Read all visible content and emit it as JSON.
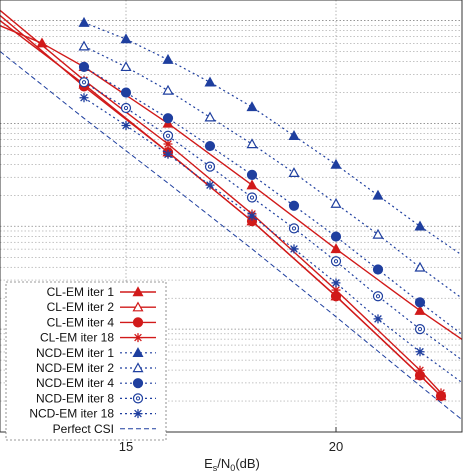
{
  "chart_data": {
    "type": "line",
    "xlabel": "E",
    "xlabel_sub": "s",
    "xlabel_mid": "/N",
    "xlabel_sub2": "0",
    "xlabel_tail": "(dB)",
    "xlim": [
      12.0,
      23.0
    ],
    "ylog": true,
    "ylim_decades": [
      0,
      4.2
    ],
    "x_ticks": [
      15,
      20
    ],
    "x_tick_labels": [
      "15",
      "20"
    ],
    "grid": "on",
    "legend_position": "bottom-left",
    "colors": {
      "cl": "#d11a1a",
      "ncd": "#1f3f9f",
      "cl_dark": "#8b1030",
      "perfect": "#1f3f9f"
    },
    "series": [
      {
        "name": "CL-EM iter   1",
        "style": "cl",
        "marker": "triangle-filled",
        "x": [
          12.0,
          13.0,
          14.0,
          16.0,
          18.0,
          20.0,
          22.0,
          23.0
        ],
        "y": [
          3.95,
          3.78,
          3.55,
          3.0,
          2.4,
          1.78,
          1.18,
          0.9
        ]
      },
      {
        "name": "CL-EM iter   2",
        "style": "cl",
        "marker": "triangle-open",
        "x": [
          12.0,
          14.0,
          16.0,
          18.0,
          20.0,
          22.0,
          22.5
        ],
        "y": [
          4.0,
          3.38,
          2.72,
          2.05,
          1.32,
          0.55,
          0.35
        ]
      },
      {
        "name": "CL-EM iter   4",
        "style": "cl",
        "marker": "circle-filled",
        "x": [
          12.0,
          14.0,
          16.0,
          18.0,
          20.0,
          22.0,
          22.5
        ],
        "y": [
          4.05,
          3.36,
          2.72,
          2.05,
          1.32,
          0.55,
          0.35
        ]
      },
      {
        "name": "CL-EM iter 18",
        "style": "cl",
        "marker": "star",
        "x": [
          12.0,
          14.0,
          16.0,
          18.0,
          20.0,
          22.0,
          22.5
        ],
        "y": [
          4.1,
          3.42,
          2.8,
          2.12,
          1.38,
          0.6,
          0.38
        ]
      },
      {
        "name": "NCD-EM iter   1",
        "style": "ncd",
        "marker": "triangle-filled",
        "x": [
          14.0,
          15.0,
          16.0,
          17.0,
          18.0,
          19.0,
          20.0,
          21.0,
          22.0,
          23.0
        ],
        "y": [
          3.98,
          3.82,
          3.62,
          3.4,
          3.16,
          2.88,
          2.6,
          2.3,
          2.0,
          1.72
        ]
      },
      {
        "name": "NCD-EM iter   2",
        "style": "ncd",
        "marker": "triangle-open",
        "x": [
          14.0,
          15.0,
          16.0,
          17.0,
          18.0,
          19.0,
          20.0,
          21.0,
          22.0,
          23.0
        ],
        "y": [
          3.75,
          3.55,
          3.32,
          3.06,
          2.8,
          2.52,
          2.22,
          1.92,
          1.6,
          1.3
        ]
      },
      {
        "name": "NCD-EM iter   4",
        "style": "ncd",
        "marker": "circle-filled",
        "x": [
          14.0,
          15.0,
          16.0,
          17.0,
          18.0,
          19.0,
          20.0,
          21.0,
          22.0,
          23.0
        ],
        "y": [
          3.55,
          3.3,
          3.05,
          2.78,
          2.5,
          2.2,
          1.9,
          1.58,
          1.26,
          0.95
        ]
      },
      {
        "name": "NCD-EM iter   8",
        "style": "ncd",
        "marker": "circle-open",
        "x": [
          14.0,
          15.0,
          16.0,
          17.0,
          18.0,
          19.0,
          20.0,
          21.0,
          22.0,
          23.0
        ],
        "y": [
          3.4,
          3.15,
          2.88,
          2.58,
          2.28,
          1.98,
          1.66,
          1.32,
          1.0,
          0.7
        ]
      },
      {
        "name": "NCD-EM iter 18",
        "style": "ncd",
        "marker": "star",
        "x": [
          14.0,
          15.0,
          16.0,
          17.0,
          18.0,
          19.0,
          20.0,
          21.0,
          22.0,
          23.0
        ],
        "y": [
          3.25,
          2.98,
          2.7,
          2.4,
          2.1,
          1.78,
          1.45,
          1.1,
          0.78,
          0.48
        ]
      },
      {
        "name": "Perfect CSI",
        "style": "perfect",
        "marker": "none",
        "x": [
          12.0,
          14.0,
          16.0,
          18.0,
          20.0,
          22.0,
          23.0
        ],
        "y": [
          3.7,
          3.05,
          2.42,
          1.78,
          1.12,
          0.45,
          0.12
        ]
      }
    ]
  }
}
